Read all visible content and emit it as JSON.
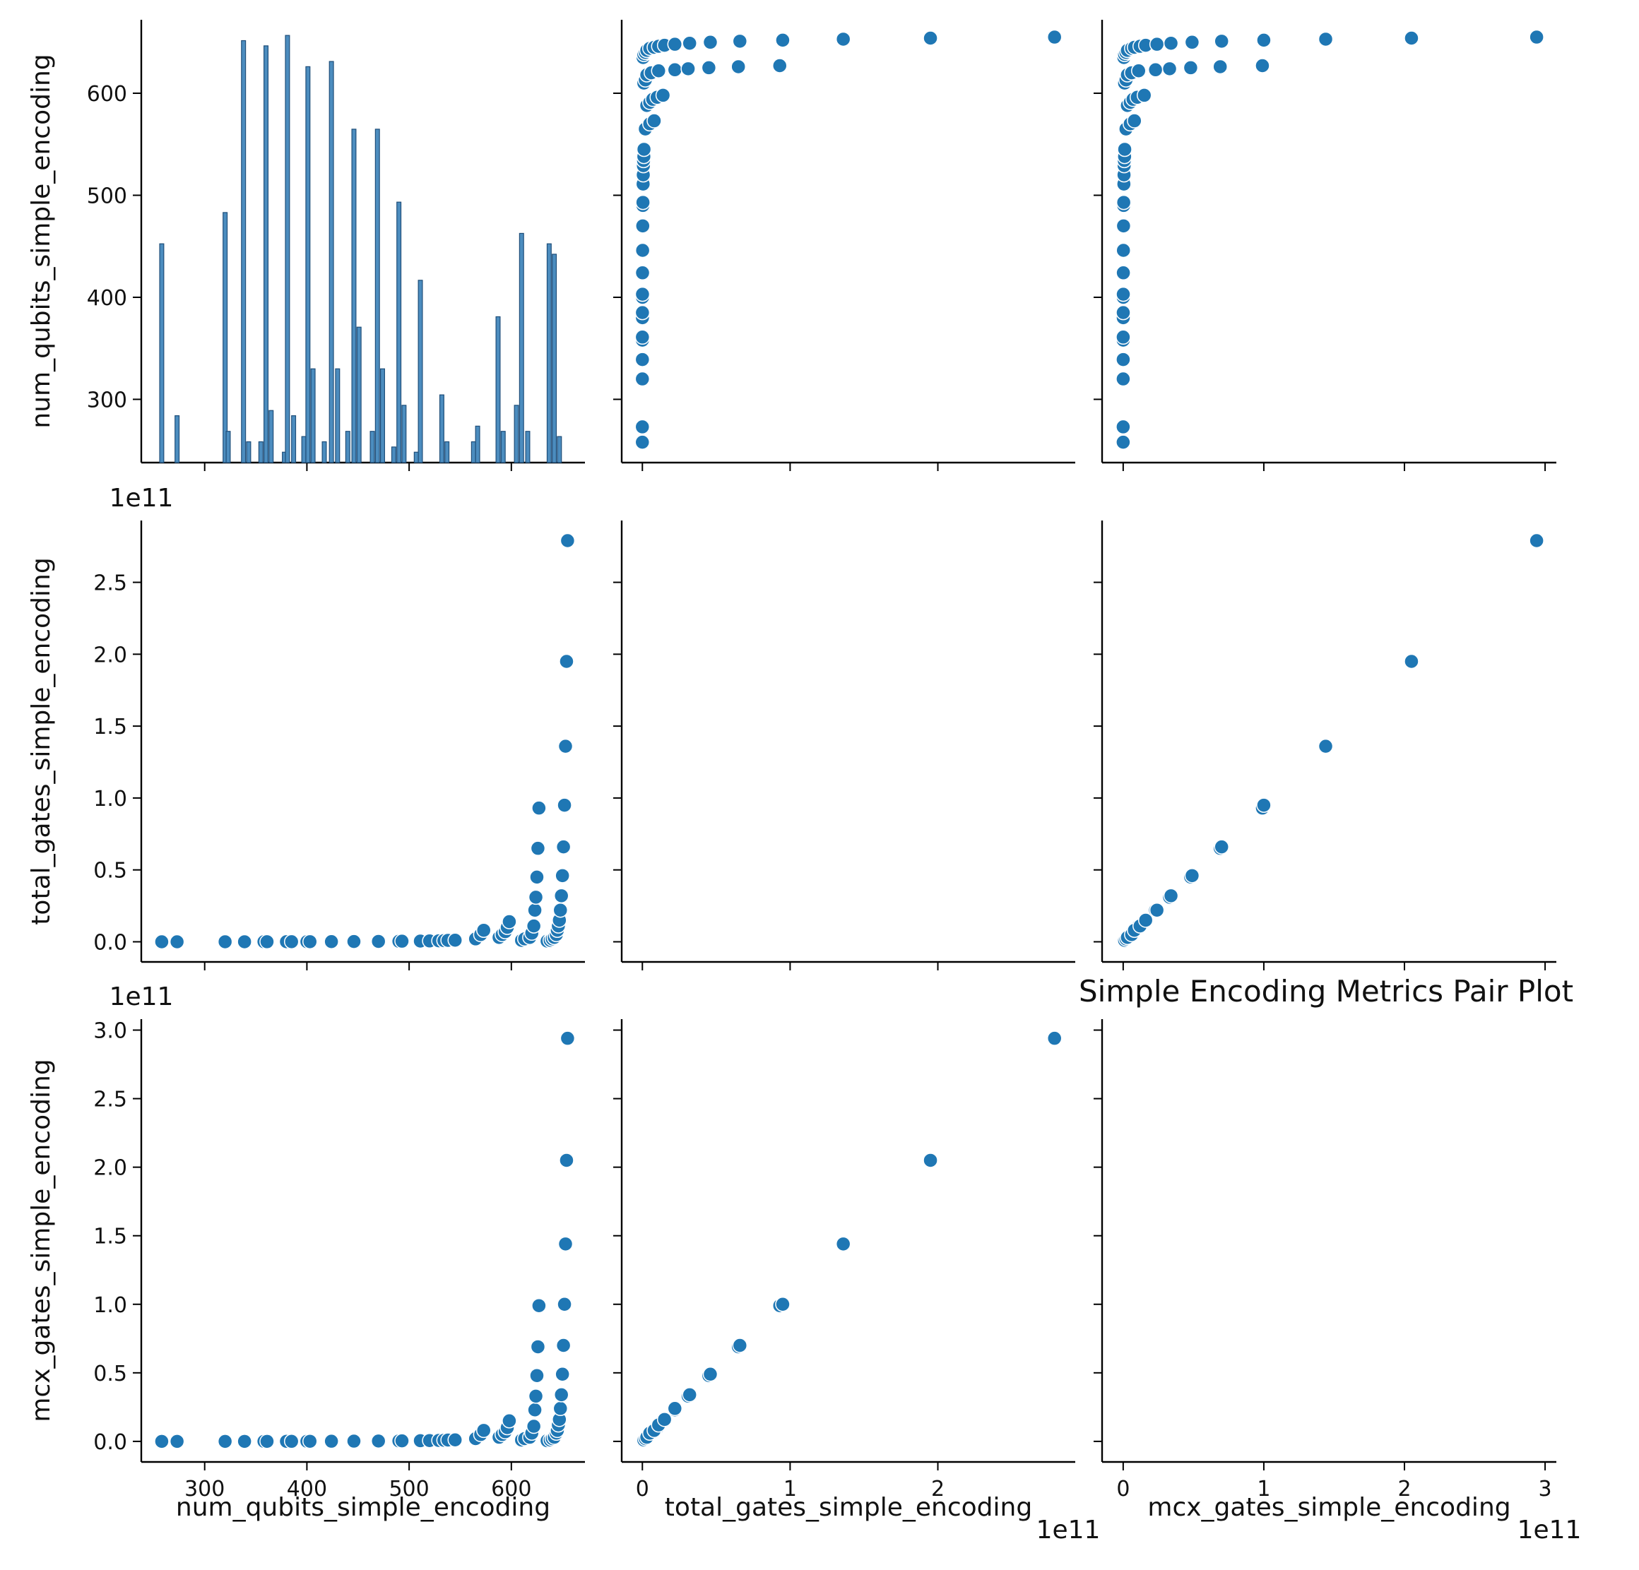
{
  "chart_data": {
    "type": "scatter",
    "layout": "pair-plot",
    "title": "Simple Encoding Metrics Pair Plot",
    "variables": [
      "num_qubits_simple_encoding",
      "total_gates_simple_encoding",
      "mcx_gates_simple_encoding"
    ],
    "colors": {
      "marker": "#1f77b4",
      "marker_edge": "#ffffff",
      "bar": "#4c8dbf",
      "bar_edge": "#1f4e79"
    },
    "axes": {
      "num_qubits": {
        "range": [
          238,
          672
        ],
        "ticks": [
          300,
          400,
          500,
          600
        ],
        "tick_labels": [
          "300",
          "400",
          "500",
          "600"
        ],
        "offset_text": ""
      },
      "total_gates": {
        "range": [
          -0.14,
          2.93
        ],
        "ticks": [
          0,
          0.5,
          1.0,
          1.5,
          2.0,
          2.5
        ],
        "tick_labels": [
          "0.0",
          "0.5",
          "1.0",
          "1.5",
          "2.0",
          "2.5"
        ],
        "top_ticks": [
          0,
          1,
          2
        ],
        "top_tick_labels": [
          "0",
          "1",
          "2"
        ],
        "offset_text": "1e11"
      },
      "mcx_gates": {
        "range": [
          -0.15,
          3.08
        ],
        "ticks": [
          0,
          0.5,
          1.0,
          1.5,
          2.0,
          2.5,
          3.0
        ],
        "tick_labels": [
          "0.0",
          "0.5",
          "1.0",
          "1.5",
          "2.0",
          "2.5",
          "3.0"
        ],
        "top_ticks": [
          0,
          1,
          2,
          3
        ],
        "top_tick_labels": [
          "0",
          "1",
          "2",
          "3"
        ],
        "offset_text": "1e11"
      }
    },
    "histogram": {
      "variable": "num_qubits_simple_encoding",
      "bins": [
        [
          258,
          42
        ],
        [
          273,
          9
        ],
        [
          320,
          48
        ],
        [
          323,
          6
        ],
        [
          338,
          81
        ],
        [
          343,
          4
        ],
        [
          355,
          4
        ],
        [
          360,
          80
        ],
        [
          365,
          10
        ],
        [
          378,
          2
        ],
        [
          381,
          82
        ],
        [
          387,
          9
        ],
        [
          397,
          5
        ],
        [
          401,
          76
        ],
        [
          406,
          18
        ],
        [
          417,
          4
        ],
        [
          424,
          77
        ],
        [
          430,
          18
        ],
        [
          440,
          6
        ],
        [
          446,
          64
        ],
        [
          451,
          26
        ],
        [
          464,
          6
        ],
        [
          469,
          64
        ],
        [
          474,
          18
        ],
        [
          485,
          3
        ],
        [
          490,
          50
        ],
        [
          495,
          11
        ],
        [
          507,
          2
        ],
        [
          511,
          35
        ],
        [
          532,
          13
        ],
        [
          537,
          4
        ],
        [
          563,
          4
        ],
        [
          567,
          7
        ],
        [
          587,
          28
        ],
        [
          592,
          6
        ],
        [
          605,
          11
        ],
        [
          610,
          44
        ],
        [
          616,
          6
        ],
        [
          637,
          42
        ],
        [
          642,
          40
        ],
        [
          647,
          5
        ]
      ],
      "count_range": [
        0,
        85
      ]
    },
    "points": [
      {
        "num_qubits": 258,
        "total_gates": 0.0,
        "mcx_gates": 0.0
      },
      {
        "num_qubits": 273,
        "total_gates": 0.0,
        "mcx_gates": 0.0
      },
      {
        "num_qubits": 320,
        "total_gates": 0.0001,
        "mcx_gates": 0.0001
      },
      {
        "num_qubits": 339,
        "total_gates": 0.0002,
        "mcx_gates": 0.0002
      },
      {
        "num_qubits": 358,
        "total_gates": 0.0003,
        "mcx_gates": 0.0003
      },
      {
        "num_qubits": 361,
        "total_gates": 0.0003,
        "mcx_gates": 0.0003
      },
      {
        "num_qubits": 380,
        "total_gates": 0.0005,
        "mcx_gates": 0.0005
      },
      {
        "num_qubits": 385,
        "total_gates": 0.0005,
        "mcx_gates": 0.0005
      },
      {
        "num_qubits": 400,
        "total_gates": 0.0008,
        "mcx_gates": 0.0008
      },
      {
        "num_qubits": 403,
        "total_gates": 0.0008,
        "mcx_gates": 0.0008
      },
      {
        "num_qubits": 424,
        "total_gates": 0.0012,
        "mcx_gates": 0.0012
      },
      {
        "num_qubits": 446,
        "total_gates": 0.0018,
        "mcx_gates": 0.0018
      },
      {
        "num_qubits": 470,
        "total_gates": 0.0026,
        "mcx_gates": 0.0026
      },
      {
        "num_qubits": 490,
        "total_gates": 0.0035,
        "mcx_gates": 0.0035
      },
      {
        "num_qubits": 493,
        "total_gates": 0.004,
        "mcx_gates": 0.004
      },
      {
        "num_qubits": 511,
        "total_gates": 0.005,
        "mcx_gates": 0.005
      },
      {
        "num_qubits": 520,
        "total_gates": 0.006,
        "mcx_gates": 0.006
      },
      {
        "num_qubits": 529,
        "total_gates": 0.007,
        "mcx_gates": 0.007
      },
      {
        "num_qubits": 534,
        "total_gates": 0.008,
        "mcx_gates": 0.008
      },
      {
        "num_qubits": 538,
        "total_gates": 0.01,
        "mcx_gates": 0.01
      },
      {
        "num_qubits": 545,
        "total_gates": 0.011,
        "mcx_gates": 0.011
      },
      {
        "num_qubits": 565,
        "total_gates": 0.02,
        "mcx_gates": 0.02
      },
      {
        "num_qubits": 570,
        "total_gates": 0.05,
        "mcx_gates": 0.05
      },
      {
        "num_qubits": 573,
        "total_gates": 0.08,
        "mcx_gates": 0.08
      },
      {
        "num_qubits": 588,
        "total_gates": 0.03,
        "mcx_gates": 0.03
      },
      {
        "num_qubits": 591,
        "total_gates": 0.05,
        "mcx_gates": 0.05
      },
      {
        "num_qubits": 594,
        "total_gates": 0.07,
        "mcx_gates": 0.07
      },
      {
        "num_qubits": 596,
        "total_gates": 0.1,
        "mcx_gates": 0.1
      },
      {
        "num_qubits": 598,
        "total_gates": 0.14,
        "mcx_gates": 0.15
      },
      {
        "num_qubits": 610,
        "total_gates": 0.01,
        "mcx_gates": 0.01
      },
      {
        "num_qubits": 613,
        "total_gates": 0.02,
        "mcx_gates": 0.02
      },
      {
        "num_qubits": 618,
        "total_gates": 0.03,
        "mcx_gates": 0.03
      },
      {
        "num_qubits": 620,
        "total_gates": 0.06,
        "mcx_gates": 0.06
      },
      {
        "num_qubits": 622,
        "total_gates": 0.11,
        "mcx_gates": 0.11
      },
      {
        "num_qubits": 623,
        "total_gates": 0.22,
        "mcx_gates": 0.23
      },
      {
        "num_qubits": 624,
        "total_gates": 0.31,
        "mcx_gates": 0.33
      },
      {
        "num_qubits": 625,
        "total_gates": 0.45,
        "mcx_gates": 0.48
      },
      {
        "num_qubits": 626,
        "total_gates": 0.65,
        "mcx_gates": 0.69
      },
      {
        "num_qubits": 627,
        "total_gates": 0.93,
        "mcx_gates": 0.99
      },
      {
        "num_qubits": 635,
        "total_gates": 0.005,
        "mcx_gates": 0.005
      },
      {
        "num_qubits": 638,
        "total_gates": 0.01,
        "mcx_gates": 0.01
      },
      {
        "num_qubits": 640,
        "total_gates": 0.02,
        "mcx_gates": 0.02
      },
      {
        "num_qubits": 642,
        "total_gates": 0.03,
        "mcx_gates": 0.03
      },
      {
        "num_qubits": 644,
        "total_gates": 0.05,
        "mcx_gates": 0.06
      },
      {
        "num_qubits": 645,
        "total_gates": 0.08,
        "mcx_gates": 0.08
      },
      {
        "num_qubits": 646,
        "total_gates": 0.11,
        "mcx_gates": 0.12
      },
      {
        "num_qubits": 647,
        "total_gates": 0.15,
        "mcx_gates": 0.16
      },
      {
        "num_qubits": 648,
        "total_gates": 0.22,
        "mcx_gates": 0.24
      },
      {
        "num_qubits": 649,
        "total_gates": 0.32,
        "mcx_gates": 0.34
      },
      {
        "num_qubits": 650,
        "total_gates": 0.46,
        "mcx_gates": 0.49
      },
      {
        "num_qubits": 651,
        "total_gates": 0.66,
        "mcx_gates": 0.7
      },
      {
        "num_qubits": 652,
        "total_gates": 0.95,
        "mcx_gates": 1.0
      },
      {
        "num_qubits": 653,
        "total_gates": 1.36,
        "mcx_gates": 1.44
      },
      {
        "num_qubits": 654,
        "total_gates": 1.95,
        "mcx_gates": 2.05
      },
      {
        "num_qubits": 655,
        "total_gates": 2.79,
        "mcx_gates": 2.94
      }
    ],
    "grid": false,
    "legend": "none"
  }
}
